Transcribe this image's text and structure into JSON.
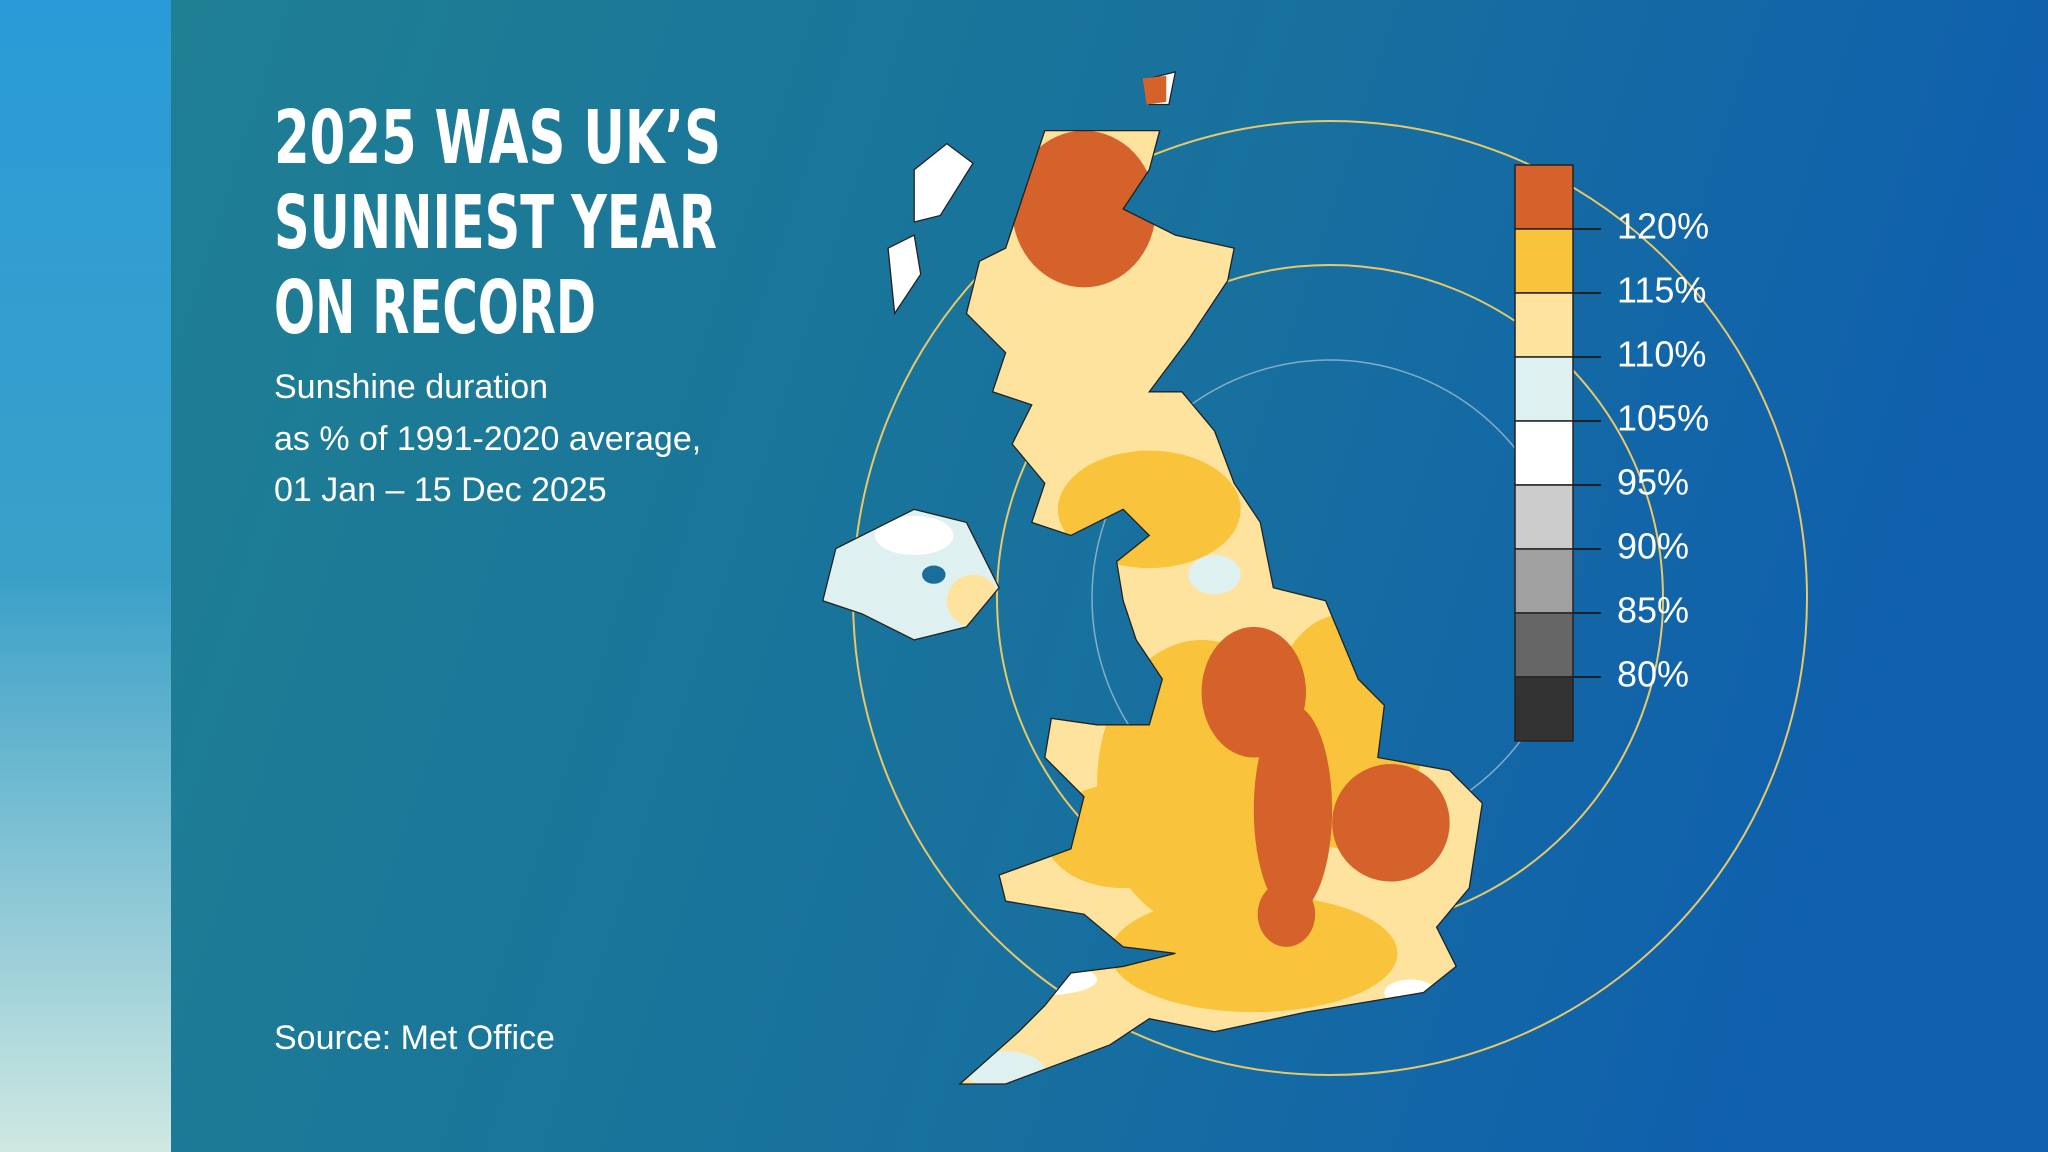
{
  "header": {
    "title_lines": [
      "2025 WAS UK’S",
      "SUNNIEST YEAR",
      "ON RECORD"
    ],
    "subtitle_lines": [
      "Sunshine duration",
      "as % of 1991-2020 average,",
      "01 Jan – 15 Dec 2025"
    ]
  },
  "legend": {
    "labels": [
      "120%",
      "115%",
      "110%",
      "105%",
      "95%",
      "90%",
      "85%",
      "80%"
    ],
    "colors": [
      "#d4622a",
      "#f9c43c",
      "#fde39e",
      "#dff0f0",
      "#ffffff",
      "#cccccc",
      "#a0a0a0",
      "#666666",
      "#333333"
    ]
  },
  "source": "Source: Met Office"
}
